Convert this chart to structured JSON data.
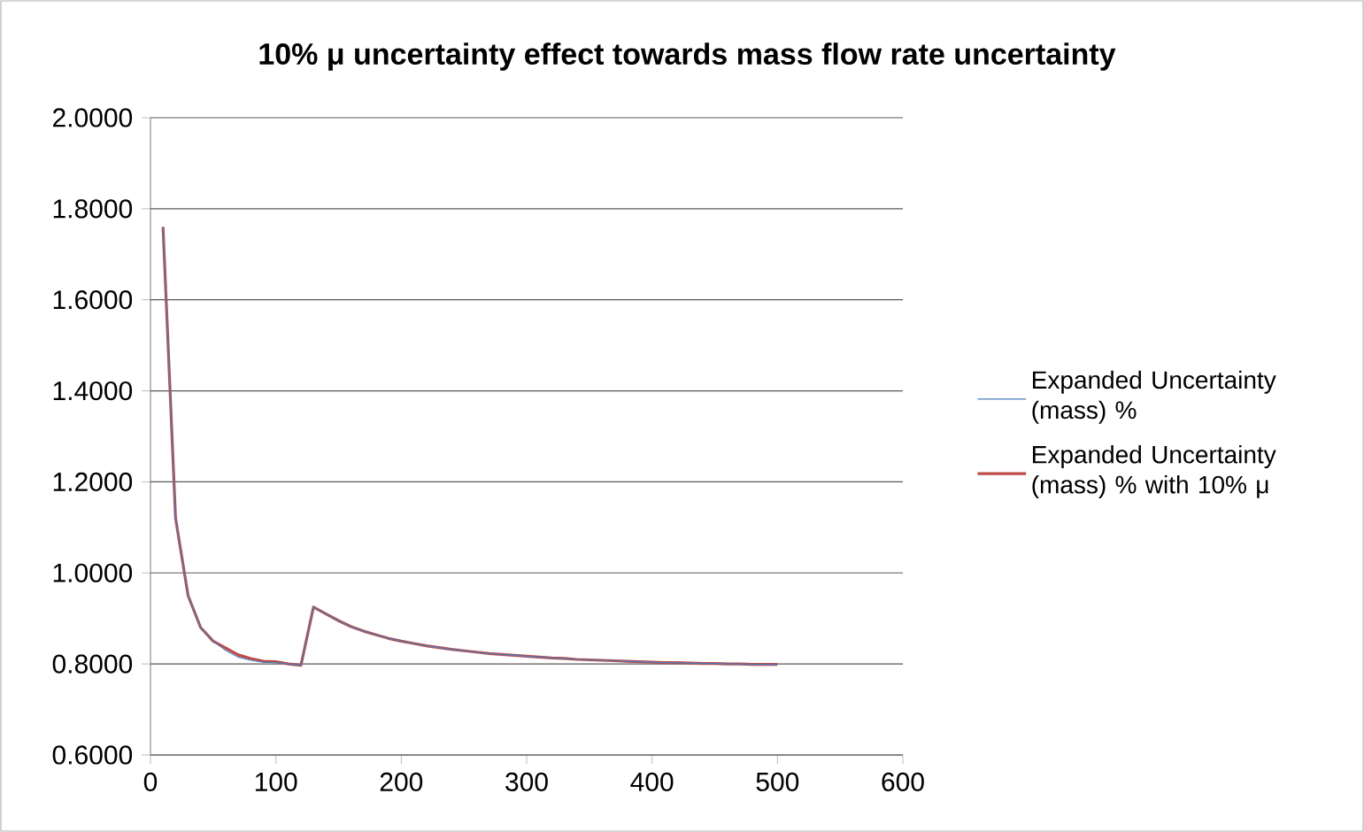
{
  "chart_data": {
    "type": "line",
    "title": "10% μ uncertainty effect towards mass flow rate uncertainty",
    "x": [
      10,
      20,
      30,
      40,
      50,
      60,
      70,
      80,
      90,
      100,
      110,
      120,
      130,
      140,
      150,
      160,
      170,
      180,
      190,
      200,
      210,
      220,
      230,
      240,
      250,
      260,
      270,
      280,
      290,
      300,
      310,
      320,
      330,
      340,
      350,
      360,
      370,
      380,
      390,
      400,
      410,
      420,
      430,
      440,
      450,
      460,
      470,
      480,
      490,
      500
    ],
    "series": [
      {
        "name": "Expanded Uncertainty (mass) %",
        "color": "#4a7ebb",
        "values": [
          1.76,
          1.12,
          0.95,
          0.88,
          0.85,
          0.83,
          0.815,
          0.808,
          0.804,
          0.803,
          0.8,
          0.797,
          0.925,
          0.91,
          0.895,
          0.882,
          0.872,
          0.864,
          0.856,
          0.85,
          0.845,
          0.84,
          0.836,
          0.832,
          0.829,
          0.826,
          0.823,
          0.821,
          0.819,
          0.817,
          0.815,
          0.813,
          0.812,
          0.81,
          0.809,
          0.808,
          0.807,
          0.806,
          0.805,
          0.804,
          0.803,
          0.803,
          0.802,
          0.801,
          0.801,
          0.8,
          0.8,
          0.799,
          0.799,
          0.799
        ]
      },
      {
        "name": "Expanded Uncertainty (mass) % with 10% μ",
        "color": "#be4b48",
        "values": [
          1.76,
          1.12,
          0.95,
          0.88,
          0.85,
          0.835,
          0.82,
          0.812,
          0.806,
          0.805,
          0.8,
          0.797,
          0.925,
          0.91,
          0.895,
          0.882,
          0.872,
          0.864,
          0.856,
          0.85,
          0.845,
          0.84,
          0.836,
          0.832,
          0.829,
          0.826,
          0.823,
          0.821,
          0.819,
          0.817,
          0.815,
          0.813,
          0.812,
          0.81,
          0.809,
          0.808,
          0.807,
          0.806,
          0.805,
          0.804,
          0.803,
          0.803,
          0.802,
          0.801,
          0.801,
          0.8,
          0.8,
          0.799,
          0.799,
          0.799
        ]
      }
    ],
    "xlim": [
      0,
      600
    ],
    "xticks": [
      0,
      100,
      200,
      300,
      400,
      500,
      600
    ],
    "ylim": [
      0.6,
      2.0
    ],
    "yticks": [
      {
        "value": 0.6,
        "label": "0.6000"
      },
      {
        "value": 0.8,
        "label": "0.8000"
      },
      {
        "value": 1.0,
        "label": "1.0000"
      },
      {
        "value": 1.2,
        "label": "1.2000"
      },
      {
        "value": 1.4,
        "label": "1.4000"
      },
      {
        "value": 1.6,
        "label": "1.6000"
      },
      {
        "value": 1.8,
        "label": "1.8000"
      },
      {
        "value": 2.0,
        "label": "2.0000"
      }
    ],
    "grid": "y",
    "legend": "right",
    "marker": "none",
    "line_style": "solid"
  }
}
